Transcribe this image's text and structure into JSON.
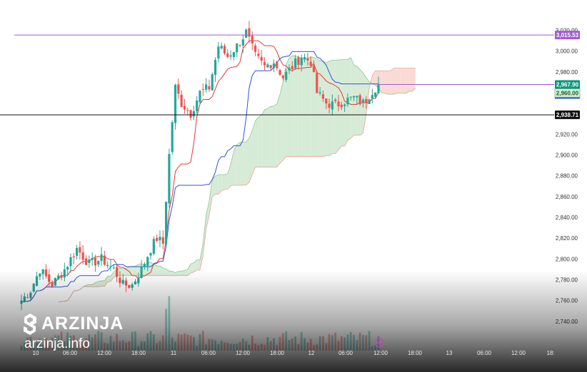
{
  "chart_data": {
    "type": "candlestick",
    "title": "",
    "xlabel": "",
    "ylabel": "",
    "ylim": [
      2720,
      3030
    ],
    "y_ticks": [
      "3,020.00",
      "3,000.00",
      "2,980.00",
      "2,960.00",
      "2,940.00",
      "2,920.00",
      "2,900.00",
      "2,880.00",
      "2,860.00",
      "2,840.00",
      "2,820.00",
      "2,800.00",
      "2,780.00",
      "2,760.00",
      "2,740.00"
    ],
    "x_ticks": [
      "10",
      "06:00",
      "12:00",
      "18:00",
      "11",
      "06:00",
      "12:00",
      "18:00",
      "12",
      "06:00",
      "12:00",
      "18:00",
      "13",
      "06:00",
      "12:00",
      "18:"
    ],
    "grid": false,
    "price_labels": {
      "resistance": "3,015.53",
      "current": "2,967.90",
      "ask": "2,960.00",
      "support": "2,938.71"
    },
    "levels": {
      "resistance": 3015.53,
      "current": 2967.9,
      "support": 2938.71
    },
    "anchors": [
      [
        0,
        2760
      ],
      [
        3,
        2770
      ],
      [
        6,
        2790
      ],
      [
        10,
        2775
      ],
      [
        14,
        2790
      ],
      [
        18,
        2810
      ],
      [
        22,
        2795
      ],
      [
        26,
        2800
      ],
      [
        30,
        2790
      ],
      [
        33,
        2775
      ],
      [
        36,
        2775
      ],
      [
        39,
        2790
      ],
      [
        42,
        2810
      ],
      [
        44,
        2820
      ],
      [
        46,
        2815
      ],
      [
        48,
        2900
      ],
      [
        50,
        2965
      ],
      [
        52,
        2950
      ],
      [
        55,
        2940
      ],
      [
        58,
        2960
      ],
      [
        61,
        2965
      ],
      [
        64,
        3005
      ],
      [
        67,
        2995
      ],
      [
        70,
        3005
      ],
      [
        73,
        3018
      ],
      [
        76,
        2995
      ],
      [
        79,
        2985
      ],
      [
        82,
        2990
      ],
      [
        85,
        2975
      ],
      [
        88,
        2985
      ],
      [
        91,
        2995
      ],
      [
        94,
        2990
      ],
      [
        96,
        2960
      ],
      [
        99,
        2950
      ],
      [
        102,
        2948
      ],
      [
        105,
        2952
      ],
      [
        108,
        2955
      ],
      [
        111,
        2950
      ],
      [
        114,
        2962
      ],
      [
        116,
        2968
      ]
    ],
    "candle_count": 117,
    "series": [
      {
        "role": "conversion",
        "color": "#e53935"
      },
      {
        "role": "base",
        "color": "#2f55d4"
      }
    ],
    "cloud": {
      "bull_color": "#cfe8cf",
      "bear_color": "#f8d3cc"
    },
    "watermark": {
      "name": "ARZINJA",
      "site": "arzinja.info"
    },
    "colors": {
      "up": "#26a69a",
      "down": "#ef5350",
      "resistance": "#a25bd2",
      "current": "#089981",
      "ask": "#4fa36b",
      "support": "#111111"
    },
    "event_icon": "lightning-icon"
  }
}
